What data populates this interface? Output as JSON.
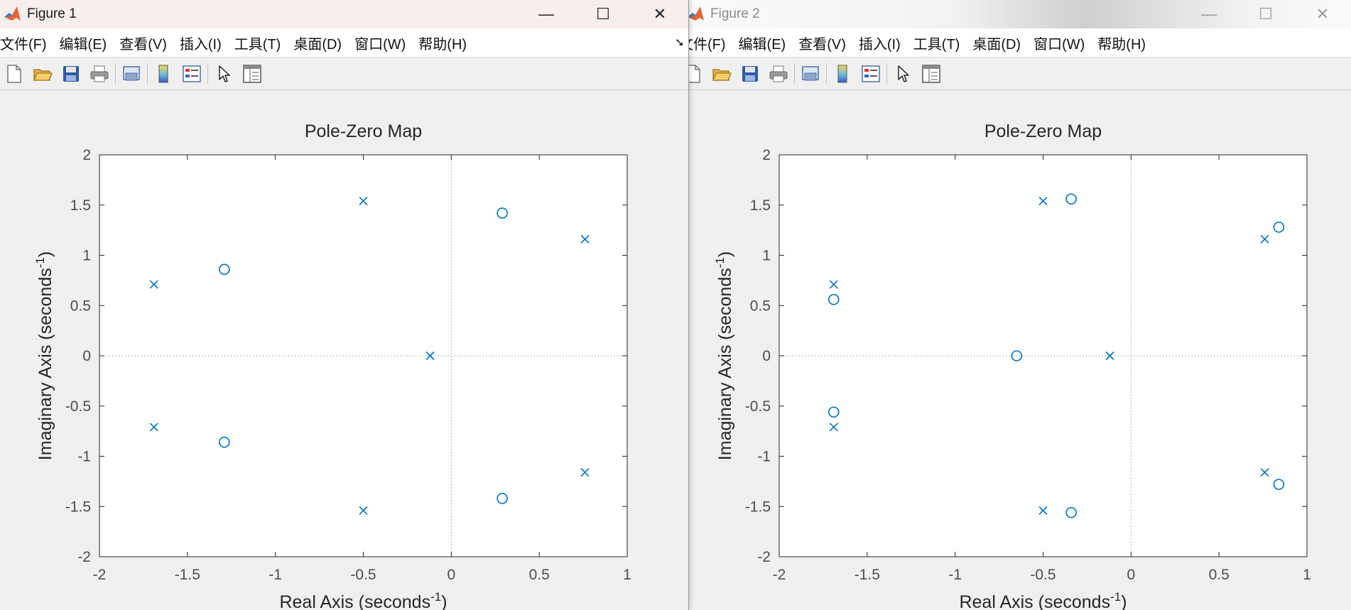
{
  "figures": [
    {
      "window_title": "Figure 1",
      "menu": [
        "文件(F)",
        "编辑(E)",
        "查看(V)",
        "插入(I)",
        "工具(T)",
        "桌面(D)",
        "窗口(W)",
        "帮助(H)"
      ],
      "toolbar": [
        "new-figure-icon",
        "open-file-icon",
        "save-icon",
        "print-icon",
        "print-preview-icon",
        "colorbar-icon",
        "legend-icon",
        "edit-plot-arrow-icon",
        "property-inspector-icon"
      ],
      "window_controls": {
        "minimize": "—",
        "maximize": "☐",
        "close": "✕"
      }
    },
    {
      "window_title": "Figure 2",
      "menu": [
        "文件(F)",
        "编辑(E)",
        "查看(V)",
        "插入(I)",
        "工具(T)",
        "桌面(D)",
        "窗口(W)",
        "帮助(H)"
      ],
      "undock_arrow": "➘",
      "toolbar": [
        "new-figure-icon",
        "open-file-icon",
        "save-icon",
        "print-icon",
        "print-preview-icon",
        "colorbar-icon",
        "legend-icon",
        "edit-plot-arrow-icon",
        "property-inspector-icon"
      ],
      "window_controls": {
        "minimize": "—",
        "maximize": "☐",
        "close": "✕"
      }
    }
  ],
  "colors": {
    "marker": "#0072bd",
    "axes_bg": "#ffffff",
    "figure_bg": "#f0f0f0"
  },
  "chart_data": [
    {
      "type": "scatter",
      "title": "Pole-Zero Map",
      "xlabel": "Real Axis (seconds",
      "ylabel": "Imaginary Axis (seconds",
      "label_exponent": "-1",
      "label_close": ")",
      "xlim": [
        -2,
        1
      ],
      "ylim": [
        -2,
        2
      ],
      "xticks": [
        "-2",
        "-1.5",
        "-1",
        "-0.5",
        "0",
        "0.5",
        "1"
      ],
      "yticks": [
        "2",
        "1.5",
        "1",
        "0.5",
        "0",
        "-0.5",
        "-1",
        "-1.5",
        "-2"
      ],
      "poles": [
        [
          -1.69,
          0.71
        ],
        [
          -1.69,
          -0.71
        ],
        [
          -0.5,
          1.54
        ],
        [
          -0.5,
          -1.54
        ],
        [
          -0.12,
          0
        ],
        [
          0.76,
          1.16
        ],
        [
          0.76,
          -1.16
        ]
      ],
      "zeros": [
        [
          -1.29,
          0.86
        ],
        [
          -1.29,
          -0.86
        ],
        [
          0.29,
          1.42
        ],
        [
          0.29,
          -1.42
        ]
      ]
    },
    {
      "type": "scatter",
      "title": "Pole-Zero Map",
      "xlabel": "Real Axis (seconds",
      "ylabel": "Imaginary Axis (seconds",
      "label_exponent": "-1",
      "label_close": ")",
      "xlim": [
        -2,
        1
      ],
      "ylim": [
        -2,
        2
      ],
      "xticks": [
        "-2",
        "-1.5",
        "-1",
        "-0.5",
        "0",
        "0.5",
        "1"
      ],
      "yticks": [
        "2",
        "1.5",
        "1",
        "0.5",
        "0",
        "-0.5",
        "-1",
        "-1.5",
        "-2"
      ],
      "poles": [
        [
          -1.69,
          0.71
        ],
        [
          -1.69,
          -0.71
        ],
        [
          -0.5,
          1.54
        ],
        [
          -0.5,
          -1.54
        ],
        [
          -0.12,
          0
        ],
        [
          0.76,
          1.16
        ],
        [
          0.76,
          -1.16
        ]
      ],
      "zeros": [
        [
          -1.69,
          0.56
        ],
        [
          -1.69,
          -0.56
        ],
        [
          -0.65,
          0
        ],
        [
          -0.34,
          1.56
        ],
        [
          -0.34,
          -1.56
        ],
        [
          0.84,
          1.28
        ],
        [
          0.84,
          -1.28
        ]
      ]
    }
  ]
}
